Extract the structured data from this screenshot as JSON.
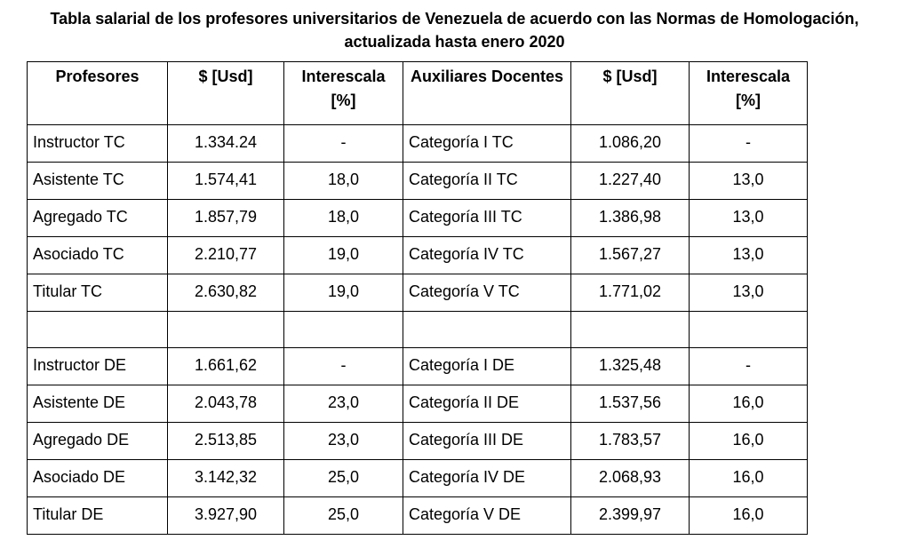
{
  "title": {
    "line1": "Tabla salarial de los profesores universitarios de Venezuela de acuerdo con las Normas de Homologación,",
    "line2": "actualizada hasta enero 2020"
  },
  "table": {
    "headers": [
      "Profesores",
      "$ [Usd]",
      "Interescala [%]",
      "Auxiliares Docentes",
      "$ [Usd]",
      "Interescala [%]"
    ],
    "rows": [
      [
        "Instructor TC",
        "1.334.24",
        "-",
        "Categoría I TC",
        "1.086,20",
        "-"
      ],
      [
        "Asistente TC",
        "1.574,41",
        "18,0",
        "Categoría II TC",
        "1.227,40",
        "13,0"
      ],
      [
        "Agregado TC",
        "1.857,79",
        "18,0",
        "Categoría III TC",
        "1.386,98",
        "13,0"
      ],
      [
        "Asociado TC",
        "2.210,77",
        "19,0",
        "Categoría IV TC",
        "1.567,27",
        "13,0"
      ],
      [
        "Titular TC",
        "2.630,82",
        "19,0",
        "Categoría V TC",
        "1.771,02",
        "13,0"
      ],
      [
        "",
        "",
        "",
        "",
        "",
        ""
      ],
      [
        "Instructor DE",
        "1.661,62",
        "-",
        "Categoría I DE",
        "1.325,48",
        "-"
      ],
      [
        "Asistente DE",
        "2.043,78",
        "23,0",
        "Categoría II DE",
        "1.537,56",
        "16,0"
      ],
      [
        "Agregado DE",
        "2.513,85",
        "23,0",
        "Categoría III DE",
        "1.783,57",
        "16,0"
      ],
      [
        "Asociado DE",
        "3.142,32",
        "25,0",
        "Categoría IV DE",
        "2.068,93",
        "16,0"
      ],
      [
        "Titular DE",
        "3.927,90",
        "25,0",
        "Categoría V DE",
        "2.399,97",
        "16,0"
      ]
    ]
  }
}
